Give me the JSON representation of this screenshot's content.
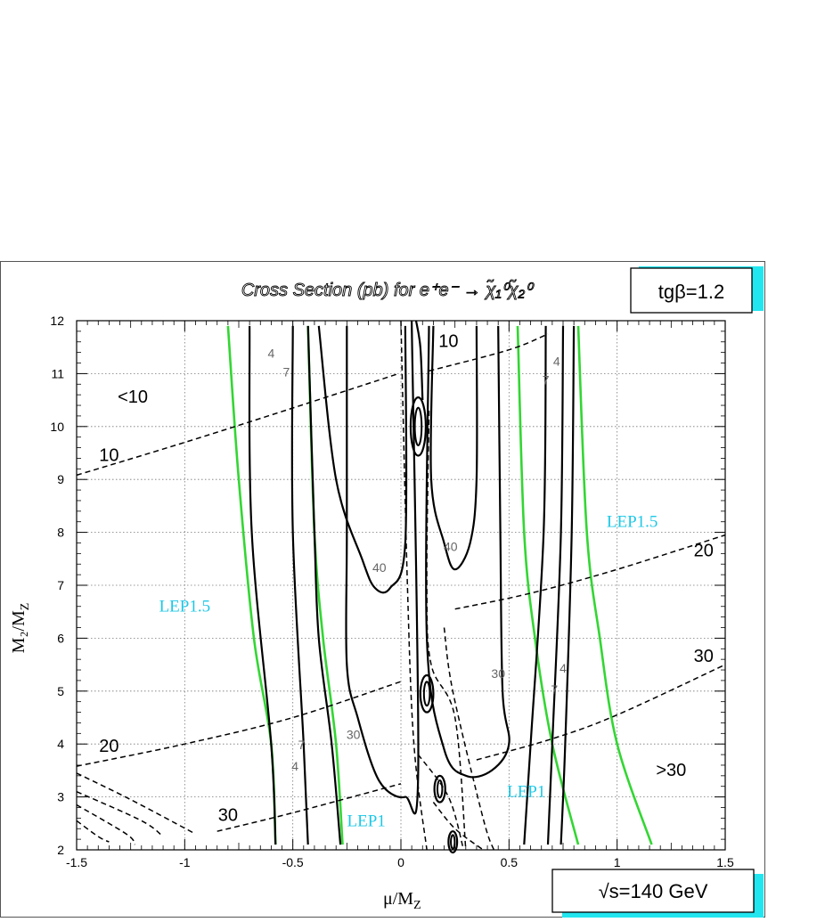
{
  "chart_data": {
    "type": "contour",
    "title": "Cross Section (pb) for e⁺e⁻ → χ̃₁⁰χ̃₂⁰",
    "xlabel": "μ/M",
    "xlabel_sub": "Z",
    "ylabel": "M₂/M",
    "ylabel_sub": "Z",
    "xlim": [
      -1.5,
      1.5
    ],
    "ylim": [
      2,
      12
    ],
    "grid": true,
    "x_ticks": [
      "-1.5",
      "-1",
      "-0.5",
      "0",
      "0.5",
      "1",
      "1.5"
    ],
    "x_tick_values": [
      -1.5,
      -1,
      -0.5,
      0,
      0.5,
      1,
      1.5
    ],
    "y_ticks": [
      "2",
      "3",
      "4",
      "5",
      "6",
      "7",
      "8",
      "9",
      "10",
      "11",
      "12"
    ],
    "y_tick_values": [
      2,
      3,
      4,
      5,
      6,
      7,
      8,
      9,
      10,
      11,
      12
    ],
    "param_box": "tgβ=1.2",
    "energy_box": "√s=140 GeV",
    "dashed_contours": [
      {
        "name": "10",
        "points": [
          [
            -1.5,
            9.08
          ],
          [
            -1.0,
            9.7
          ],
          [
            -0.5,
            10.35
          ],
          [
            -0.01,
            11.0
          ]
        ]
      },
      {
        "name": "10",
        "points": [
          [
            0.13,
            11.05
          ],
          [
            0.5,
            11.45
          ],
          [
            0.68,
            11.75
          ]
        ]
      },
      {
        "name": "20",
        "points": [
          [
            -1.5,
            3.58
          ],
          [
            -1.0,
            4.0
          ],
          [
            -0.5,
            4.5
          ],
          [
            0.0,
            5.18
          ]
        ]
      },
      {
        "name": "20",
        "points": [
          [
            0.25,
            6.55
          ],
          [
            0.6,
            6.85
          ],
          [
            1.0,
            7.3
          ],
          [
            1.5,
            7.95
          ]
        ]
      },
      {
        "name": "30",
        "points": [
          [
            -0.85,
            2.35
          ],
          [
            -0.5,
            2.7
          ],
          [
            0.0,
            3.25
          ]
        ]
      },
      {
        "name": "30",
        "points": [
          [
            0.35,
            3.7
          ],
          [
            0.7,
            4.1
          ],
          [
            1.0,
            4.55
          ],
          [
            1.5,
            5.5
          ]
        ]
      },
      {
        "name": "",
        "points": [
          [
            0.0,
            12.0
          ],
          [
            0.03,
            7.0
          ],
          [
            0.06,
            4.0
          ],
          [
            0.12,
            2.0
          ]
        ]
      },
      {
        "name": "",
        "points": [
          [
            0.13,
            10.3
          ],
          [
            0.12,
            7.0
          ],
          [
            0.14,
            5.5
          ],
          [
            0.25,
            4.5
          ],
          [
            0.3,
            2.0
          ]
        ]
      },
      {
        "name": "",
        "points": [
          [
            0.2,
            6.2
          ],
          [
            0.24,
            5.0
          ],
          [
            0.38,
            2.6
          ],
          [
            0.43,
            2.0
          ]
        ]
      },
      {
        "name": "",
        "points": [
          [
            0.08,
            3.8
          ],
          [
            0.22,
            3.0
          ],
          [
            0.29,
            2.0
          ]
        ]
      },
      {
        "name": "",
        "points": [
          [
            0.15,
            2.9
          ],
          [
            0.25,
            2.4
          ],
          [
            0.38,
            2.0
          ]
        ]
      },
      {
        "name": "",
        "points": [
          [
            -1.5,
            3.45
          ],
          [
            -1.25,
            2.95
          ],
          [
            -0.95,
            2.3
          ]
        ]
      },
      {
        "name": "",
        "points": [
          [
            -1.5,
            3.1
          ],
          [
            -1.2,
            2.55
          ],
          [
            -1.1,
            2.25
          ]
        ]
      },
      {
        "name": "",
        "points": [
          [
            -1.5,
            2.85
          ],
          [
            -1.27,
            2.3
          ],
          [
            -1.23,
            2.1
          ]
        ]
      },
      {
        "name": "",
        "points": [
          [
            -1.5,
            2.55
          ],
          [
            -1.4,
            2.25
          ],
          [
            -1.35,
            2.15
          ]
        ]
      }
    ],
    "solid_contours": [
      {
        "name": "4",
        "points": [
          [
            -0.7,
            11.9
          ],
          [
            -0.69,
            8.0
          ],
          [
            -0.6,
            4.0
          ],
          [
            -0.58,
            2.1
          ]
        ]
      },
      {
        "name": "7",
        "points": [
          [
            -0.5,
            11.9
          ],
          [
            -0.5,
            8.0
          ],
          [
            -0.45,
            4.0
          ],
          [
            -0.43,
            2.1
          ]
        ]
      },
      {
        "name": "",
        "points": [
          [
            -0.43,
            11.9
          ],
          [
            -0.4,
            8.0
          ],
          [
            -0.38,
            6.0
          ],
          [
            -0.32,
            4.0
          ],
          [
            -0.28,
            2.1
          ]
        ]
      },
      {
        "name": "40",
        "points": [
          [
            -0.38,
            11.9
          ],
          [
            -0.3,
            9.0
          ],
          [
            -0.18,
            7.5
          ],
          [
            -0.12,
            6.95
          ],
          [
            -0.05,
            6.95
          ],
          [
            0.02,
            7.8
          ],
          [
            0.02,
            11.9
          ]
        ]
      },
      {
        "name": "30",
        "points": [
          [
            -0.25,
            11.9
          ],
          [
            -0.25,
            8.0
          ],
          [
            -0.25,
            5.5
          ],
          [
            -0.2,
            4.5
          ],
          [
            -0.1,
            3.3
          ],
          [
            0.02,
            3.0
          ],
          [
            0.08,
            3.5
          ],
          [
            0.05,
            12.0
          ]
        ]
      },
      {
        "name": "",
        "points": [
          [
            0.1,
            10.5
          ],
          [
            0.09,
            11.5
          ],
          [
            0.07,
            12.0
          ]
        ]
      },
      {
        "name": "40",
        "points": [
          [
            0.15,
            11.9
          ],
          [
            0.14,
            9.0
          ],
          [
            0.2,
            7.8
          ],
          [
            0.25,
            7.3
          ],
          [
            0.32,
            7.8
          ],
          [
            0.35,
            9.0
          ],
          [
            0.35,
            11.9
          ]
        ]
      },
      {
        "name": "30",
        "points": [
          [
            0.45,
            11.9
          ],
          [
            0.46,
            8.0
          ],
          [
            0.47,
            5.0
          ],
          [
            0.5,
            4.0
          ],
          [
            0.42,
            3.5
          ],
          [
            0.3,
            3.4
          ],
          [
            0.2,
            3.9
          ],
          [
            0.12,
            6.0
          ],
          [
            0.13,
            11.9
          ]
        ]
      },
      {
        "name": "",
        "points": [
          [
            0.67,
            11.9
          ],
          [
            0.66,
            8.0
          ],
          [
            0.6,
            4.0
          ],
          [
            0.57,
            2.1
          ]
        ]
      },
      {
        "name": "7",
        "points": [
          [
            0.75,
            11.9
          ],
          [
            0.74,
            8.0
          ],
          [
            0.7,
            4.0
          ],
          [
            0.68,
            2.1
          ]
        ]
      },
      {
        "name": "4",
        "points": [
          [
            0.8,
            11.9
          ],
          [
            0.79,
            8.0
          ],
          [
            0.76,
            4.0
          ],
          [
            0.74,
            2.1
          ]
        ]
      }
    ],
    "islands": [
      {
        "x": 0.08,
        "y": 10.0,
        "rx": 0.035,
        "ry": 0.55
      },
      {
        "x": 0.12,
        "y": 4.95,
        "rx": 0.03,
        "ry": 0.35
      },
      {
        "x": 0.18,
        "y": 3.15,
        "rx": 0.025,
        "ry": 0.25
      },
      {
        "x": 0.24,
        "y": 2.15,
        "rx": 0.02,
        "ry": 0.2
      }
    ],
    "lep_boundaries": [
      {
        "name": "LEP1.5",
        "points": [
          [
            -0.8,
            11.9
          ],
          [
            -0.75,
            9.0
          ],
          [
            -0.68,
            6.0
          ],
          [
            -0.6,
            4.0
          ],
          [
            -0.58,
            2.1
          ]
        ]
      },
      {
        "name": "LEP1",
        "points": [
          [
            -0.43,
            11.9
          ],
          [
            -0.4,
            8.0
          ],
          [
            -0.36,
            6.0
          ],
          [
            -0.3,
            4.0
          ],
          [
            -0.27,
            2.1
          ]
        ]
      },
      {
        "name": "LEP1",
        "points": [
          [
            0.54,
            11.9
          ],
          [
            0.57,
            8.0
          ],
          [
            0.62,
            6.0
          ],
          [
            0.7,
            4.0
          ],
          [
            0.82,
            2.1
          ]
        ]
      },
      {
        "name": "LEP1.5",
        "points": [
          [
            0.82,
            11.9
          ],
          [
            0.86,
            8.0
          ],
          [
            0.92,
            6.0
          ],
          [
            1.0,
            4.0
          ],
          [
            1.16,
            2.1
          ]
        ]
      }
    ],
    "annotations": [
      {
        "text": "<10",
        "x": -1.24,
        "y": 10.45,
        "style": "big"
      },
      {
        "text": "10",
        "x": -1.35,
        "y": 9.35,
        "style": "big"
      },
      {
        "text": "10",
        "x": 0.22,
        "y": 11.5,
        "style": "big"
      },
      {
        "text": "20",
        "x": -1.35,
        "y": 3.85,
        "style": "big"
      },
      {
        "text": "20",
        "x": 1.4,
        "y": 7.55,
        "style": "big"
      },
      {
        "text": "30",
        "x": -0.8,
        "y": 2.55,
        "style": "big"
      },
      {
        "text": "30",
        "x": 1.4,
        "y": 5.55,
        "style": "big"
      },
      {
        "text": ">30",
        "x": 1.25,
        "y": 3.4,
        "style": "big"
      },
      {
        "text": "4",
        "x": -0.6,
        "y": 11.3,
        "style": "small"
      },
      {
        "text": "7",
        "x": -0.53,
        "y": 10.95,
        "style": "small"
      },
      {
        "text": "40",
        "x": -0.1,
        "y": 7.25,
        "style": "small"
      },
      {
        "text": "40",
        "x": 0.23,
        "y": 7.65,
        "style": "small"
      },
      {
        "text": "30",
        "x": 0.45,
        "y": 5.25,
        "style": "small"
      },
      {
        "text": "30",
        "x": -0.22,
        "y": 4.1,
        "style": "small"
      },
      {
        "text": "7",
        "x": -0.46,
        "y": 3.9,
        "style": "small"
      },
      {
        "text": "4",
        "x": -0.49,
        "y": 3.5,
        "style": "small"
      },
      {
        "text": "4",
        "x": 0.72,
        "y": 11.15,
        "style": "small"
      },
      {
        "text": "7",
        "x": 0.67,
        "y": 10.8,
        "style": "small"
      },
      {
        "text": "4",
        "x": 0.75,
        "y": 5.35,
        "style": "small"
      },
      {
        "text": "7",
        "x": 0.71,
        "y": 4.95,
        "style": "small"
      },
      {
        "text": "LEP1.5",
        "x": -1.0,
        "y": 6.5,
        "style": "lep"
      },
      {
        "text": "LEP1.5",
        "x": 1.07,
        "y": 8.1,
        "style": "lep"
      },
      {
        "text": "LEP1",
        "x": -0.16,
        "y": 2.45,
        "style": "lep"
      },
      {
        "text": "LEP1",
        "x": 0.58,
        "y": 3.0,
        "style": "lep"
      }
    ]
  }
}
